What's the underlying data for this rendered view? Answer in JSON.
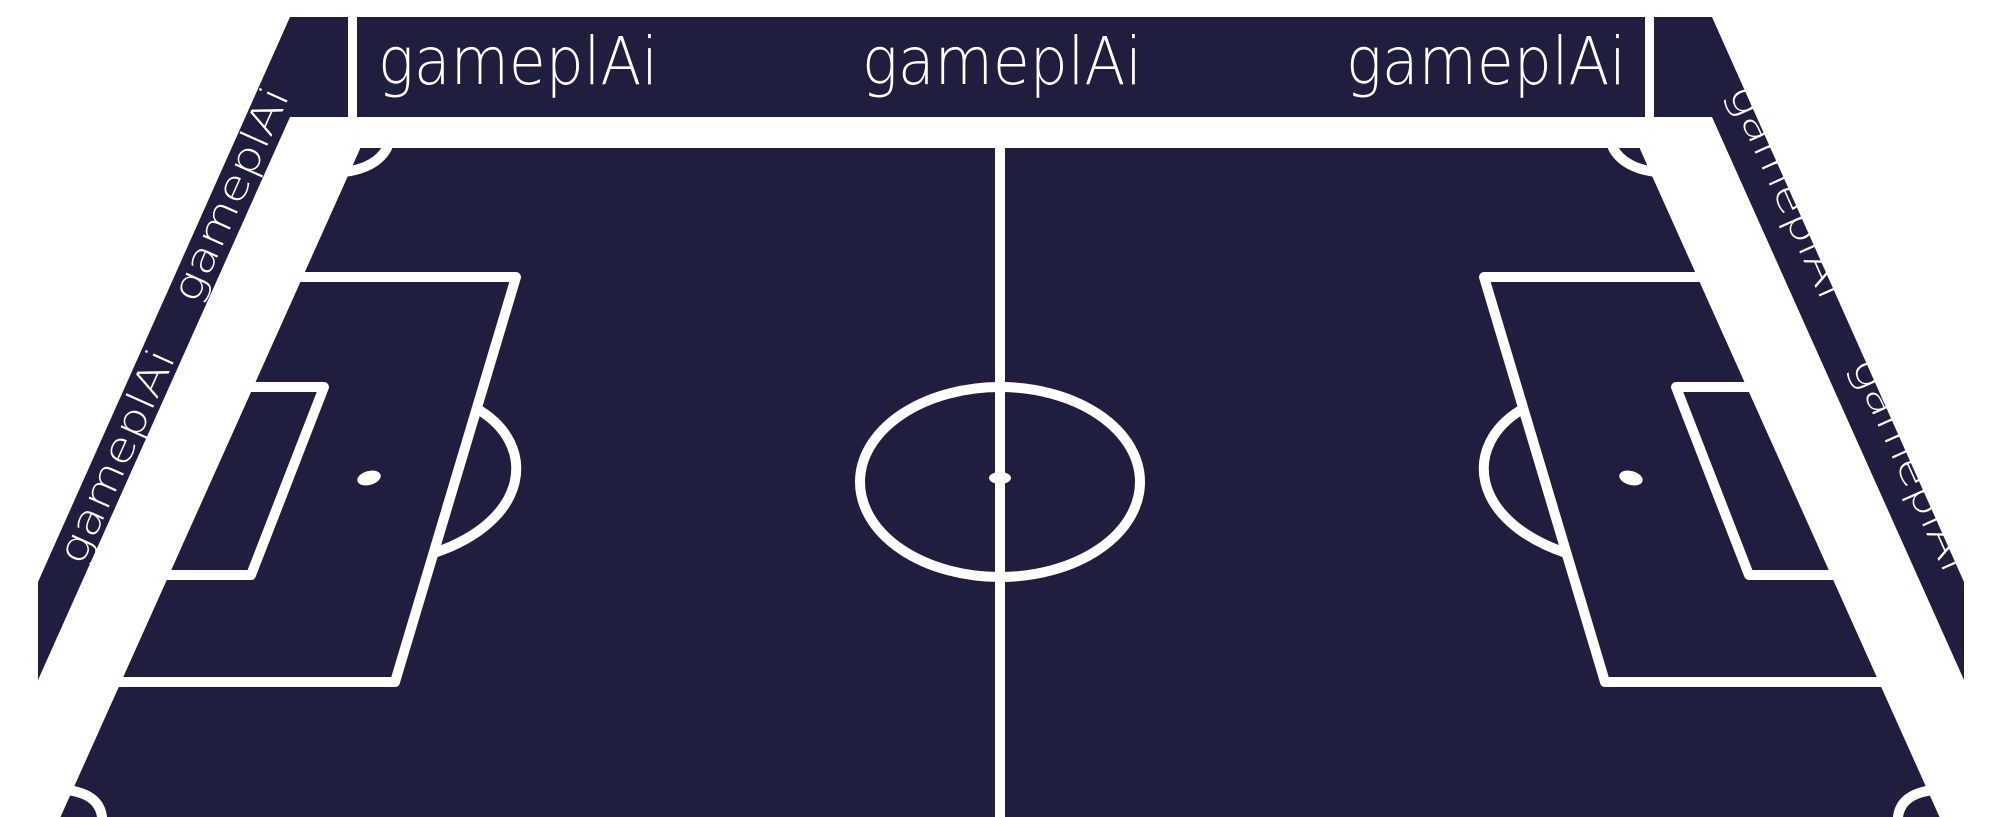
{
  "brand": {
    "wordmark": "gameplAi"
  },
  "colors": {
    "pitch": "#201e3e",
    "lines": "#ffffff",
    "background": "#ffffff"
  }
}
